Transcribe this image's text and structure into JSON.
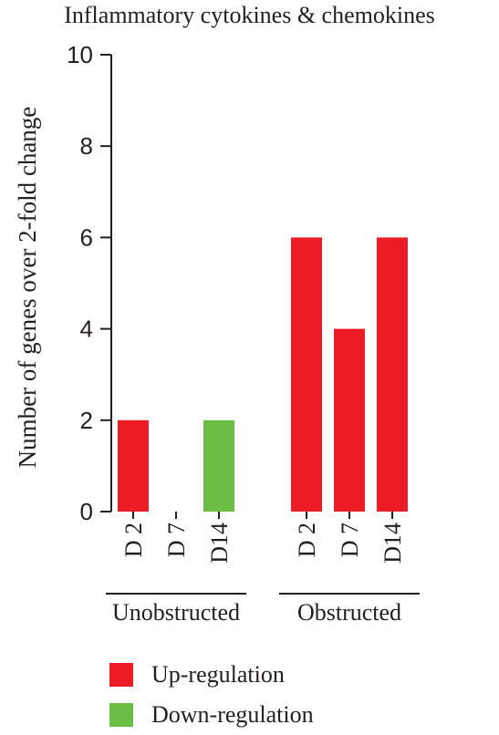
{
  "chart_data": {
    "type": "bar",
    "title": "Inflammatory cytokines & chemokines",
    "ylabel": "Number of genes over 2-fold change",
    "ylim": [
      0,
      10
    ],
    "yticks": [
      0,
      2,
      4,
      6,
      8,
      10
    ],
    "groups": [
      {
        "label": "Unobstructed",
        "categories": [
          "D 2",
          "D 7",
          "D14"
        ]
      },
      {
        "label": "Obstructed",
        "categories": [
          "D 2",
          "D 7",
          "D14"
        ]
      }
    ],
    "bars": [
      {
        "group": "Unobstructed",
        "category": "D 2",
        "value": 2,
        "series": "Up-regulation"
      },
      {
        "group": "Unobstructed",
        "category": "D 7",
        "value": 0,
        "series": "Up-regulation"
      },
      {
        "group": "Unobstructed",
        "category": "D14",
        "value": 2,
        "series": "Down-regulation"
      },
      {
        "group": "Obstructed",
        "category": "D 2",
        "value": 6,
        "series": "Up-regulation"
      },
      {
        "group": "Obstructed",
        "category": "D 7",
        "value": 4,
        "series": "Up-regulation"
      },
      {
        "group": "Obstructed",
        "category": "D14",
        "value": 6,
        "series": "Up-regulation"
      }
    ],
    "series": [
      {
        "name": "Up-regulation",
        "color": "#ed1c24"
      },
      {
        "name": "Down-regulation",
        "color": "#6abd45"
      }
    ],
    "grid": false,
    "legend_position": "bottom"
  }
}
